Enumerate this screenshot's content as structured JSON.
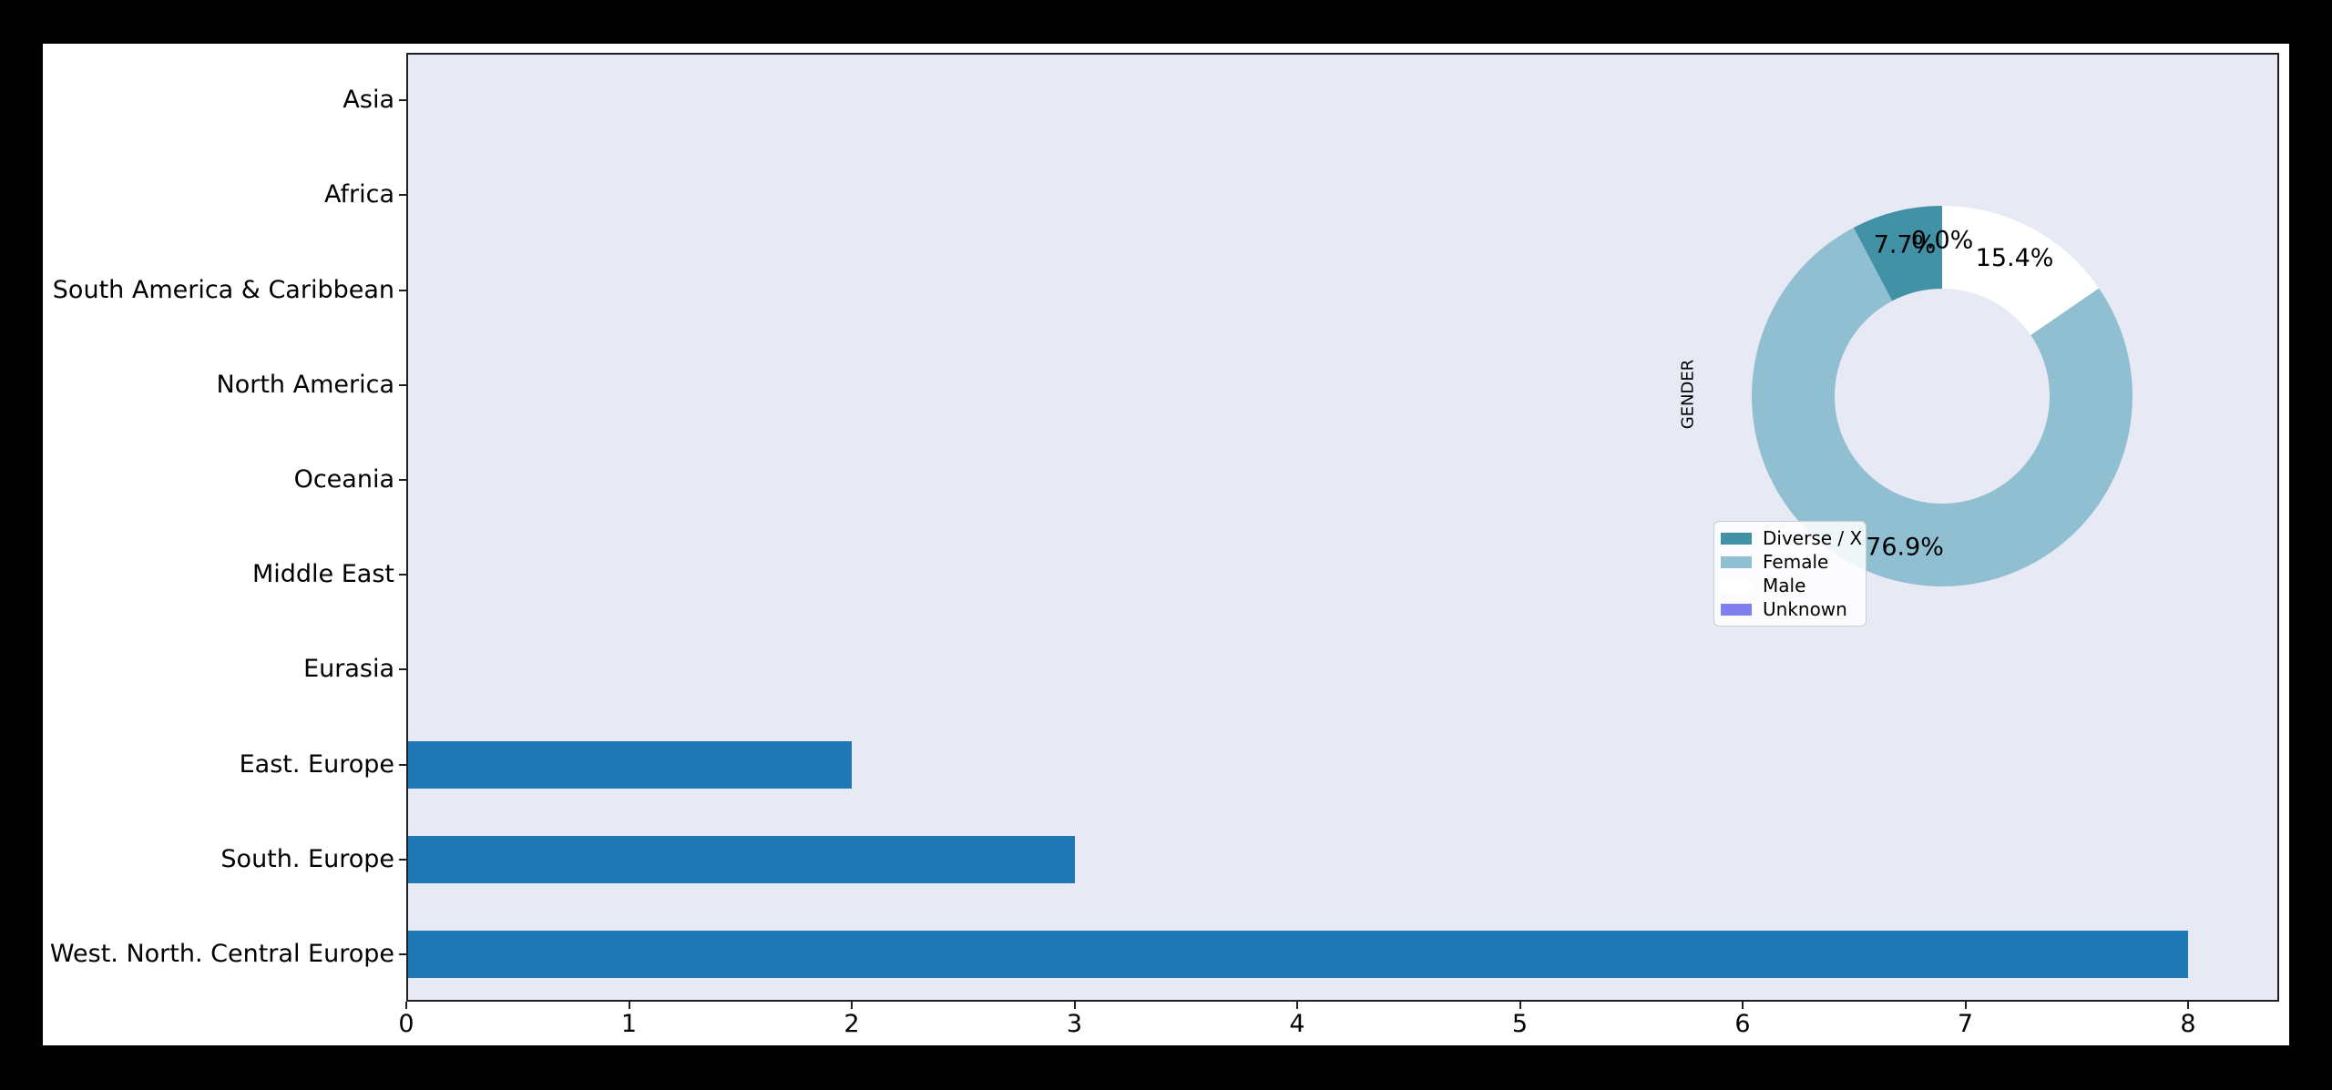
{
  "chart_data": [
    {
      "type": "bar",
      "orientation": "horizontal",
      "title": "",
      "xlabel": "",
      "ylabel": "",
      "categories": [
        "Asia",
        "Africa",
        "South America & Caribbean",
        "North America",
        "Oceania",
        "Middle East",
        "Eurasia",
        "East. Europe",
        "South. Europe",
        "West. North. Central Europe"
      ],
      "values": [
        0,
        0,
        0,
        0,
        0,
        0,
        0,
        2,
        3,
        8
      ],
      "xticks": [
        "0",
        "1",
        "2",
        "3",
        "4",
        "5",
        "6",
        "7",
        "8"
      ],
      "xtick_values": [
        0,
        1,
        2,
        3,
        4,
        5,
        6,
        7,
        8
      ],
      "xlim": [
        0,
        8.4
      ],
      "grid": false,
      "bar_color": "#1f77b4",
      "plot_background": "#e7eaf5"
    },
    {
      "type": "pie",
      "variant": "donut",
      "title": "GENDER",
      "legend_entries": [
        "Diverse / X",
        "Female",
        "Male",
        "Unknown"
      ],
      "values": [
        7.7,
        76.9,
        15.4,
        0.0
      ],
      "pct_labels": [
        "7.7%",
        "76.9%",
        "15.4%",
        "0.0%"
      ],
      "colors": [
        "#4191a7",
        "#91bfd2",
        "#ffffff",
        "#817ef0"
      ],
      "start_angle": 90,
      "counterclock": true,
      "legend_position": "lower left"
    }
  ]
}
